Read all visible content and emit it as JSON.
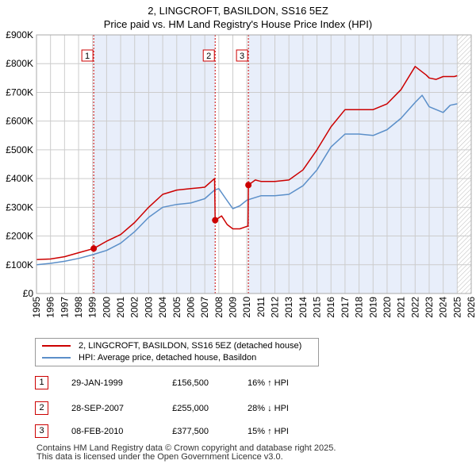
{
  "title_line1": "2, LINGCROFT, BASILDON, SS16 5EZ",
  "title_line2": "Price paid vs. HM Land Registry's House Price Index (HPI)",
  "colors": {
    "property": "#cc0000",
    "hpi": "#5b8fc9",
    "shade": "#e8eefa",
    "marker_line": "#cc0000",
    "grid": "#cccccc"
  },
  "chart_data": {
    "type": "line",
    "xlim": [
      1995,
      2026
    ],
    "ylim": [
      0,
      900000
    ],
    "x_ticks": [
      "1995",
      "1996",
      "1997",
      "1998",
      "1999",
      "2000",
      "2001",
      "2002",
      "2003",
      "2004",
      "2005",
      "2006",
      "2007",
      "2008",
      "2009",
      "2010",
      "2011",
      "2012",
      "2013",
      "2014",
      "2015",
      "2016",
      "2017",
      "2018",
      "2019",
      "2020",
      "2021",
      "2022",
      "2023",
      "2024",
      "2025",
      "2026"
    ],
    "y_ticks": [
      {
        "value": 0,
        "label": "£0"
      },
      {
        "value": 100000,
        "label": "£100K"
      },
      {
        "value": 200000,
        "label": "£200K"
      },
      {
        "value": 300000,
        "label": "£300K"
      },
      {
        "value": 400000,
        "label": "£400K"
      },
      {
        "value": 500000,
        "label": "£500K"
      },
      {
        "value": 600000,
        "label": "£600K"
      },
      {
        "value": 700000,
        "label": "£700K"
      },
      {
        "value": 800000,
        "label": "£800K"
      },
      {
        "value": 900000,
        "label": "£900K"
      }
    ],
    "shaded_ranges": [
      [
        1999.08,
        2007.74
      ],
      [
        2010.11,
        2025.0
      ]
    ],
    "hatched_from": 2025.0,
    "series": [
      {
        "name": "2, LINGCROFT, BASILDON, SS16 5EZ (detached house)",
        "color": "#cc0000",
        "x": [
          1995,
          1996,
          1997,
          1998,
          1999.08,
          2000,
          2001,
          2002,
          2003,
          2004,
          2005,
          2006,
          2007,
          2007.7,
          2007.74,
          2008.2,
          2008.6,
          2009,
          2009.5,
          2010.08,
          2010.11,
          2010.6,
          2011,
          2012,
          2013,
          2014,
          2015,
          2016,
          2017,
          2018,
          2019,
          2020,
          2021,
          2022,
          2022.4,
          2022.8,
          2023,
          2023.5,
          2024,
          2024.4,
          2024.8,
          2025
        ],
        "y": [
          118000,
          120000,
          128000,
          142000,
          156500,
          182000,
          205000,
          247000,
          300000,
          345000,
          360000,
          365000,
          370000,
          400000,
          255000,
          270000,
          240000,
          225000,
          225000,
          235000,
          377500,
          395000,
          390000,
          390000,
          395000,
          430000,
          500000,
          580000,
          640000,
          640000,
          640000,
          660000,
          710000,
          790000,
          775000,
          760000,
          750000,
          745000,
          755000,
          755000,
          755000,
          758000
        ]
      },
      {
        "name": "HPI: Average price, detached house, Basildon",
        "color": "#5b8fc9",
        "x": [
          1995,
          1996,
          1997,
          1998,
          1999,
          2000,
          2001,
          2002,
          2003,
          2004,
          2005,
          2006,
          2007,
          2007.7,
          2008,
          2008.5,
          2009,
          2009.5,
          2010,
          2011,
          2012,
          2013,
          2014,
          2015,
          2016,
          2017,
          2018,
          2019,
          2020,
          2021,
          2022,
          2022.5,
          2023,
          2023.5,
          2024,
          2024.5,
          2025
        ],
        "y": [
          100000,
          105000,
          112000,
          122000,
          135000,
          150000,
          175000,
          215000,
          265000,
          300000,
          310000,
          315000,
          330000,
          360000,
          365000,
          330000,
          295000,
          305000,
          325000,
          340000,
          340000,
          345000,
          375000,
          430000,
          510000,
          555000,
          555000,
          550000,
          570000,
          610000,
          665000,
          690000,
          650000,
          640000,
          630000,
          655000,
          660000
        ]
      }
    ],
    "sale_markers": [
      {
        "label": "1",
        "x": 1999.08,
        "y": 156500
      },
      {
        "label": "2",
        "x": 2007.74,
        "y": 255000
      },
      {
        "label": "3",
        "x": 2010.11,
        "y": 377500
      }
    ]
  },
  "legend": {
    "property_label": "2, LINGCROFT, BASILDON, SS16 5EZ (detached house)",
    "hpi_label": "HPI: Average price, detached house, Basildon"
  },
  "transactions": [
    {
      "num": "1",
      "date": "29-JAN-1999",
      "price": "£156,500",
      "hpi": "16% ↑ HPI"
    },
    {
      "num": "2",
      "date": "28-SEP-2007",
      "price": "£255,000",
      "hpi": "28% ↓ HPI"
    },
    {
      "num": "3",
      "date": "08-FEB-2010",
      "price": "£377,500",
      "hpi": "15% ↑ HPI"
    }
  ],
  "footer_line1": "Contains HM Land Registry data © Crown copyright and database right 2025.",
  "footer_line2": "This data is licensed under the Open Government Licence v3.0."
}
